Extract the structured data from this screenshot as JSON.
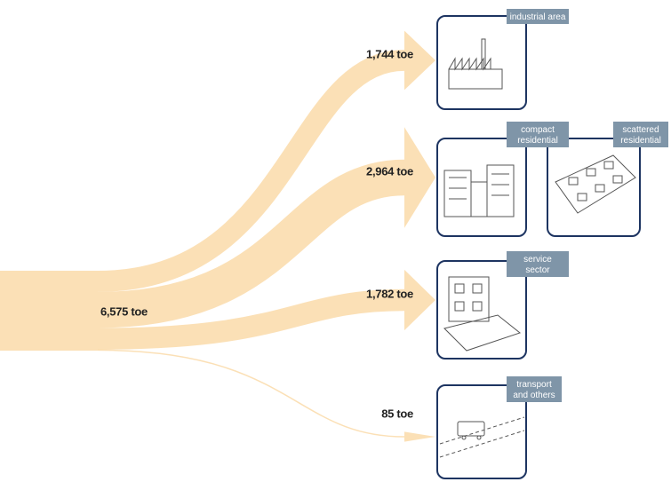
{
  "source": {
    "value": 6575,
    "label": "6,575 toe"
  },
  "flows": [
    {
      "value": 1744,
      "label": "1,744 toe"
    },
    {
      "value": 2964,
      "label": "2,964 toe"
    },
    {
      "value": 1782,
      "label": "1,782 toe"
    },
    {
      "value": 85,
      "label": "85 toe"
    }
  ],
  "nodes": [
    {
      "label": "industrial area"
    },
    {
      "label": "compact residential"
    },
    {
      "label": "scattered residential"
    },
    {
      "label": "service sector"
    },
    {
      "label": "transport and others"
    }
  ]
}
